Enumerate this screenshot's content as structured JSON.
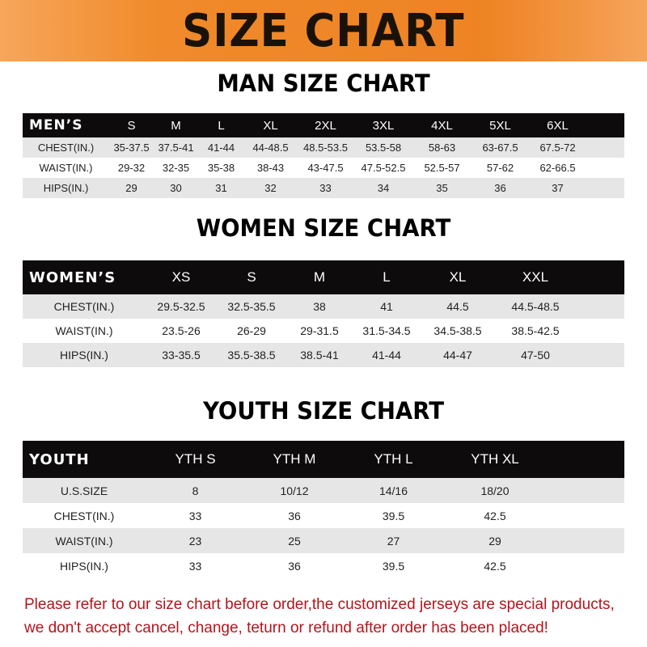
{
  "title": "SIZE CHART",
  "men": {
    "title": "MAN SIZE CHART",
    "header": [
      "MEN’S",
      "S",
      "M",
      "L",
      "XL",
      "2XL",
      "3XL",
      "4XL",
      "5XL",
      "6XL"
    ],
    "rows": [
      [
        "CHEST(IN.)",
        "35-37.5",
        "37.5-41",
        "41-44",
        "44-48.5",
        "48.5-53.5",
        "53.5-58",
        "58-63",
        "63-67.5",
        "67.5-72"
      ],
      [
        "WAIST(IN.)",
        "29-32",
        "32-35",
        "35-38",
        "38-43",
        "43-47.5",
        "47.5-52.5",
        "52.5-57",
        "57-62",
        "62-66.5"
      ],
      [
        "HIPS(IN.)",
        "29",
        "30",
        "31",
        "32",
        "33",
        "34",
        "35",
        "36",
        "37"
      ]
    ]
  },
  "women": {
    "title": "WOMEN SIZE CHART",
    "header": [
      "WOMEN’S",
      "XS",
      "S",
      "M",
      "L",
      "XL",
      "XXL"
    ],
    "rows": [
      [
        "CHEST(IN.)",
        "29.5-32.5",
        "32.5-35.5",
        "38",
        "41",
        "44.5",
        "44.5-48.5"
      ],
      [
        "WAIST(IN.)",
        "23.5-26",
        "26-29",
        "29-31.5",
        "31.5-34.5",
        "34.5-38.5",
        "38.5-42.5"
      ],
      [
        "HIPS(IN.)",
        "33-35.5",
        "35.5-38.5",
        "38.5-41",
        "41-44",
        "44-47",
        "47-50"
      ]
    ]
  },
  "youth": {
    "title": "YOUTH SIZE CHART",
    "header": [
      "YOUTH",
      "YTH S",
      "YTH M",
      "YTH L",
      "YTH XL"
    ],
    "rows": [
      [
        "U.S.SIZE",
        "8",
        "10/12",
        "14/16",
        "18/20"
      ],
      [
        "CHEST(IN.)",
        "33",
        "36",
        "39.5",
        "42.5"
      ],
      [
        "WAIST(IN.)",
        "23",
        "25",
        "27",
        "29"
      ],
      [
        "HIPS(IN.)",
        "33",
        "36",
        "39.5",
        "42.5"
      ]
    ]
  },
  "note": [
    "Please refer to our size chart before order,the customized jerseys are special products,",
    "we don't accept cancel, change, teturn or refund after order has been placed!"
  ],
  "colors": {
    "banner": "#f08a2a",
    "header_row": "#0d0b0b",
    "stripe": "#e6e6e6",
    "note": "#b4141c"
  }
}
